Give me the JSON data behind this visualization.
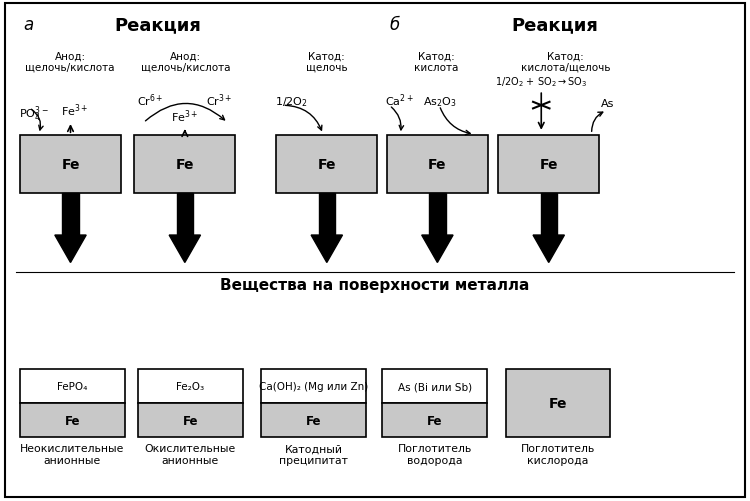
{
  "bg_color": "#ffffff",
  "box_color": "#c8c8c8",
  "title_a": "а",
  "title_b": "б",
  "reaction_label": "Реакция",
  "surface_title": "Вещества на поверхности металла",
  "col_labels_top": [
    "Анод:\nщелочь/кислота",
    "Анод:\nщелочь/кислота",
    "Катод:\nщелочь",
    "Катод:\nкислота",
    "Катод:\nкислота/щелочь"
  ],
  "bottom_boxes": [
    {
      "top_text": "FePO₄",
      "bottom_text": "Fe",
      "label": "Неокислительные\nанионные"
    },
    {
      "top_text": "Fe₂O₃",
      "bottom_text": "Fe",
      "label": "Окислительные\nанионные"
    },
    {
      "top_text": "Ca(OH)₂ (Mg или Zn)",
      "bottom_text": "Fe",
      "label": "Катодный\nпреципитат"
    },
    {
      "top_text": "As (Bi или Sb)",
      "bottom_text": "Fe",
      "label": "Поглотитель\nводорода"
    },
    {
      "top_text": "",
      "bottom_text": "Fe",
      "label": "Поглотитель\nкислорода"
    }
  ]
}
